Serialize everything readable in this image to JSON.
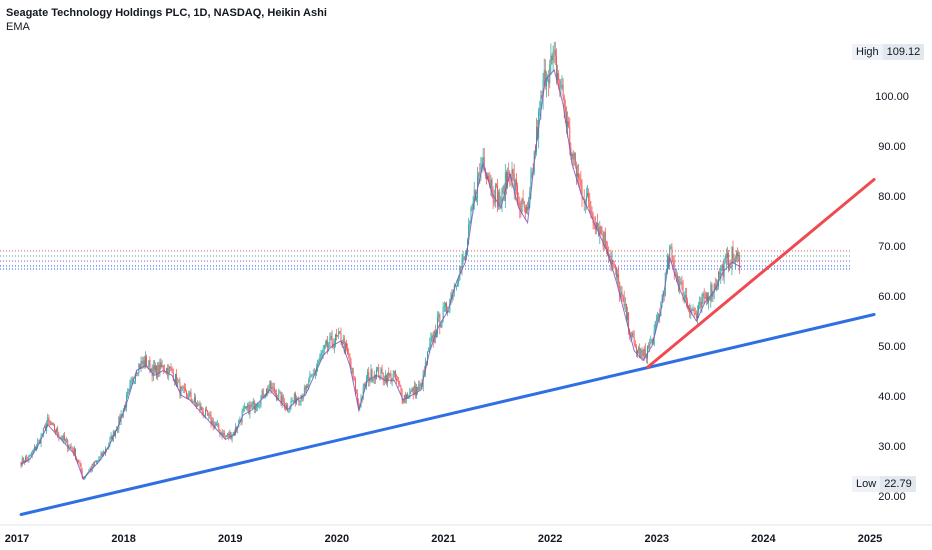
{
  "header": {
    "title": "Seagate Technology Holdings PLC, 1D, NASDAQ, Heikin Ashi",
    "indicator": "EMA"
  },
  "markers": {
    "high": {
      "label": "High",
      "value": "109.12"
    },
    "low": {
      "label": "Low",
      "value": "22.79"
    }
  },
  "colors": {
    "up": "#26a69a",
    "down": "#ef5350",
    "ema": "#7e57c2",
    "support_line": "#2f6fe4",
    "rising_line": "#ef4a52"
  },
  "chart_data": {
    "type": "candlestick",
    "ylim": [
      17,
      112
    ],
    "y_ticks": [
      20,
      30,
      40,
      50,
      60,
      70,
      80,
      90,
      100
    ],
    "x_ticks": [
      "2017",
      "2018",
      "2019",
      "2020",
      "2021",
      "2022",
      "2023",
      "2024",
      "2025"
    ],
    "series": [
      {
        "x": "2017-01",
        "y": 27
      },
      {
        "x": "2017-02",
        "y": 28
      },
      {
        "x": "2017-03",
        "y": 31
      },
      {
        "x": "2017-04",
        "y": 35
      },
      {
        "x": "2017-05",
        "y": 33
      },
      {
        "x": "2017-06",
        "y": 31
      },
      {
        "x": "2017-07",
        "y": 29
      },
      {
        "x": "2017-08",
        "y": 24
      },
      {
        "x": "2017-09",
        "y": 26
      },
      {
        "x": "2017-10",
        "y": 28
      },
      {
        "x": "2017-11",
        "y": 31
      },
      {
        "x": "2017-12",
        "y": 35
      },
      {
        "x": "2018-01",
        "y": 40
      },
      {
        "x": "2018-02",
        "y": 46
      },
      {
        "x": "2018-03",
        "y": 47
      },
      {
        "x": "2018-04",
        "y": 45
      },
      {
        "x": "2018-05",
        "y": 46
      },
      {
        "x": "2018-06",
        "y": 45
      },
      {
        "x": "2018-07",
        "y": 41
      },
      {
        "x": "2018-08",
        "y": 40
      },
      {
        "x": "2018-09",
        "y": 38
      },
      {
        "x": "2018-10",
        "y": 36
      },
      {
        "x": "2018-11",
        "y": 34
      },
      {
        "x": "2018-12",
        "y": 32
      },
      {
        "x": "2019-01",
        "y": 33
      },
      {
        "x": "2019-02",
        "y": 37
      },
      {
        "x": "2019-03",
        "y": 38
      },
      {
        "x": "2019-04",
        "y": 40
      },
      {
        "x": "2019-05",
        "y": 42
      },
      {
        "x": "2019-06",
        "y": 40
      },
      {
        "x": "2019-07",
        "y": 38
      },
      {
        "x": "2019-08",
        "y": 40
      },
      {
        "x": "2019-09",
        "y": 41
      },
      {
        "x": "2019-10",
        "y": 45
      },
      {
        "x": "2019-11",
        "y": 49
      },
      {
        "x": "2019-12",
        "y": 51
      },
      {
        "x": "2020-01",
        "y": 52
      },
      {
        "x": "2020-02",
        "y": 47
      },
      {
        "x": "2020-03",
        "y": 38
      },
      {
        "x": "2020-04",
        "y": 44
      },
      {
        "x": "2020-05",
        "y": 45
      },
      {
        "x": "2020-06",
        "y": 44
      },
      {
        "x": "2020-07",
        "y": 44
      },
      {
        "x": "2020-08",
        "y": 40
      },
      {
        "x": "2020-09",
        "y": 41
      },
      {
        "x": "2020-10",
        "y": 42
      },
      {
        "x": "2020-11",
        "y": 50
      },
      {
        "x": "2020-12",
        "y": 55
      },
      {
        "x": "2021-01",
        "y": 58
      },
      {
        "x": "2021-02",
        "y": 64
      },
      {
        "x": "2021-03",
        "y": 68
      },
      {
        "x": "2021-04",
        "y": 80
      },
      {
        "x": "2021-05",
        "y": 88
      },
      {
        "x": "2021-06",
        "y": 82
      },
      {
        "x": "2021-07",
        "y": 79
      },
      {
        "x": "2021-08",
        "y": 86
      },
      {
        "x": "2021-09",
        "y": 79
      },
      {
        "x": "2021-10",
        "y": 76
      },
      {
        "x": "2021-11",
        "y": 92
      },
      {
        "x": "2021-12",
        "y": 105
      },
      {
        "x": "2022-01",
        "y": 107
      },
      {
        "x": "2022-02",
        "y": 100
      },
      {
        "x": "2022-03",
        "y": 88
      },
      {
        "x": "2022-04",
        "y": 82
      },
      {
        "x": "2022-05",
        "y": 78
      },
      {
        "x": "2022-06",
        "y": 74
      },
      {
        "x": "2022-07",
        "y": 70
      },
      {
        "x": "2022-08",
        "y": 64
      },
      {
        "x": "2022-09",
        "y": 57
      },
      {
        "x": "2022-10",
        "y": 50
      },
      {
        "x": "2022-11",
        "y": 48
      },
      {
        "x": "2022-12",
        "y": 51
      },
      {
        "x": "2023-01",
        "y": 58
      },
      {
        "x": "2023-02",
        "y": 69
      },
      {
        "x": "2023-03",
        "y": 63
      },
      {
        "x": "2023-04",
        "y": 59
      },
      {
        "x": "2023-05",
        "y": 56
      },
      {
        "x": "2023-06",
        "y": 60
      },
      {
        "x": "2023-07",
        "y": 62
      },
      {
        "x": "2023-08",
        "y": 66
      },
      {
        "x": "2023-09",
        "y": 68
      },
      {
        "x": "2023-10",
        "y": 67
      }
    ],
    "trendlines": [
      {
        "name": "support",
        "start": [
          "2017-01-15",
          16.5
        ],
        "end": [
          "2025-01-15",
          56.5
        ]
      },
      {
        "name": "rising",
        "start": [
          "2022-12-01",
          46
        ],
        "end": [
          "2025-01-15",
          83.5
        ]
      }
    ],
    "horizontal_levels": [
      {
        "value": 69.2,
        "color": "#ef5350"
      },
      {
        "value": 68.2,
        "color": "#26a69a"
      },
      {
        "value": 67.2,
        "color": "#7e57c2"
      },
      {
        "value": 66.2,
        "color": "#2962ff"
      },
      {
        "value": 65.6,
        "color": "#2962ff"
      }
    ]
  }
}
